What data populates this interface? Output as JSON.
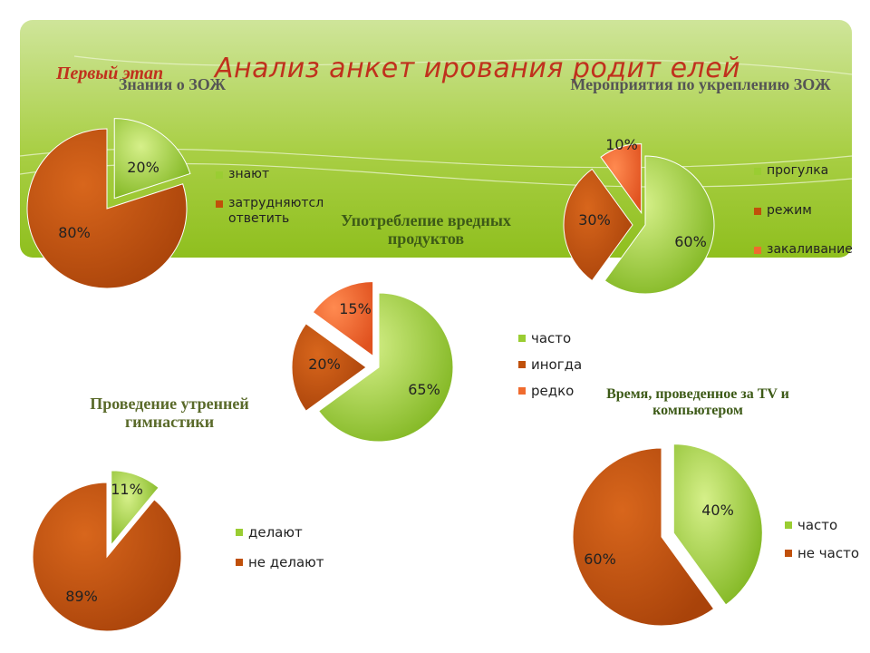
{
  "header": {
    "stage_label": "Первый этап",
    "title": "Анализ  анкет ирования родит елей"
  },
  "colors": {
    "green": "#9acd32",
    "green_light": "#c8e87a",
    "brown": "#c0500a",
    "orange": "#f06b2e",
    "banner": "#a9cf45"
  },
  "chart_data": [
    {
      "type": "pie",
      "title": "Знания о ЗОЖ",
      "categories": [
        "знают",
        "затрудняютсл ответить"
      ],
      "values": [
        20,
        80
      ],
      "labels": [
        "20%",
        "80%"
      ],
      "colors": [
        "#9acd32",
        "#c0500a"
      ],
      "exploded": [
        true,
        false
      ],
      "legend": "right"
    },
    {
      "type": "pie",
      "title": "Мероприятия по укреплению ЗОЖ",
      "categories": [
        "прогулка",
        "режим",
        "закаливание"
      ],
      "values": [
        60,
        30,
        10
      ],
      "labels": [
        "60%",
        "30%",
        "10%"
      ],
      "colors": [
        "#9acd32",
        "#c0500a",
        "#f06b2e"
      ],
      "exploded": [
        false,
        true,
        true
      ],
      "legend": "right"
    },
    {
      "type": "pie",
      "title": "Употреблепие вредных продуктов",
      "categories": [
        "часто",
        "иногда",
        "редко"
      ],
      "values": [
        65,
        20,
        15
      ],
      "labels": [
        "65%",
        "20%",
        "15%"
      ],
      "colors": [
        "#9acd32",
        "#c0500a",
        "#f06b2e"
      ],
      "exploded": [
        false,
        true,
        true
      ],
      "legend": "right"
    },
    {
      "type": "pie",
      "title": "Проведение утренней гимнастики",
      "categories": [
        "делают",
        "не делают"
      ],
      "values": [
        11,
        89
      ],
      "labels": [
        "11%",
        "89%"
      ],
      "colors": [
        "#9acd32",
        "#c0500a"
      ],
      "exploded": [
        true,
        false
      ],
      "legend": "right"
    },
    {
      "type": "pie",
      "title": "Время, проведенное за TV и компьютером",
      "categories": [
        "часто",
        "не часто"
      ],
      "values": [
        40,
        60
      ],
      "labels": [
        "40%",
        "60%"
      ],
      "colors": [
        "#9acd32",
        "#c0500a"
      ],
      "exploded": [
        true,
        false
      ],
      "legend": "right"
    }
  ]
}
